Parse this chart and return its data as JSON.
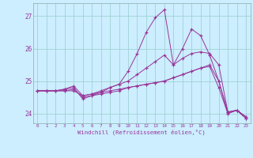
{
  "xlabel": "Windchill (Refroidissement éolien,°C)",
  "bg_color": "#cceeff",
  "line_color": "#993399",
  "grid_color": "#99cccc",
  "xlim": [
    -0.5,
    23.5
  ],
  "ylim": [
    23.7,
    27.4
  ],
  "yticks": [
    24,
    25,
    26,
    27
  ],
  "xtick_labels": [
    "0",
    "1",
    "2",
    "3",
    "4",
    "5",
    "6",
    "7",
    "8",
    "9",
    "10",
    "11",
    "12",
    "13",
    "14",
    "15",
    "16",
    "17",
    "18",
    "19",
    "20",
    "21",
    "22",
    "23"
  ],
  "series": [
    [
      24.7,
      24.7,
      24.7,
      24.75,
      24.8,
      24.45,
      24.55,
      24.65,
      24.8,
      24.9,
      25.3,
      25.85,
      26.5,
      26.95,
      27.2,
      25.5,
      26.0,
      26.6,
      26.4,
      25.8,
      25.0,
      24.05,
      24.1,
      23.9
    ],
    [
      24.7,
      24.7,
      24.7,
      24.75,
      24.85,
      24.55,
      24.6,
      24.7,
      24.8,
      24.9,
      25.0,
      25.2,
      25.4,
      25.6,
      25.8,
      25.5,
      25.7,
      25.85,
      25.9,
      25.85,
      25.5,
      24.05,
      24.1,
      23.9
    ],
    [
      24.7,
      24.7,
      24.7,
      24.7,
      24.75,
      24.5,
      24.55,
      24.6,
      24.65,
      24.7,
      24.8,
      24.85,
      24.9,
      24.95,
      25.0,
      25.1,
      25.2,
      25.3,
      25.4,
      25.5,
      25.0,
      24.0,
      24.1,
      23.85
    ],
    [
      24.7,
      24.7,
      24.7,
      24.7,
      24.7,
      24.55,
      24.6,
      24.65,
      24.7,
      24.75,
      24.8,
      24.85,
      24.9,
      24.95,
      25.0,
      25.1,
      25.2,
      25.3,
      25.4,
      25.45,
      24.8,
      24.0,
      24.1,
      23.85
    ]
  ],
  "figsize": [
    3.2,
    2.0
  ],
  "dpi": 100
}
